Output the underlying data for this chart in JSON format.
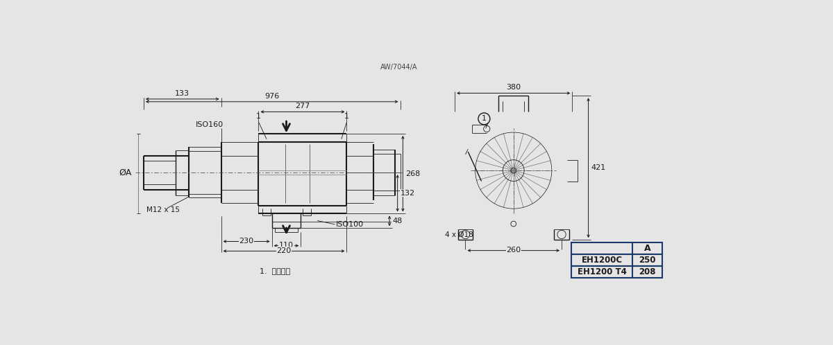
{
  "bg_color": "#e5e5e5",
  "line_color": "#1a1a1a",
  "table_border_color": "#1a3a6b",
  "title_note": "AW/7044/A",
  "footnote": "1.  起重螺栓",
  "table": {
    "header_col": "A",
    "rows": [
      [
        "EH1200C",
        "250"
      ],
      [
        "EH1200 T4",
        "208"
      ]
    ]
  },
  "dims_left": {
    "overall_width": "976",
    "left_seg": "133",
    "iso160": "ISO160",
    "top_width": "277",
    "height_total": "268",
    "height_lower": "132",
    "height_bottom": "48",
    "bottom_left": "230",
    "bottom_mid": "110",
    "bottom_total": "220",
    "iso100": "ISO100",
    "m12": "M12 x 15",
    "dia_a": "ØA"
  },
  "dims_right": {
    "top_width": "380",
    "height": "421",
    "bottom_holes": "4 x Ø18",
    "bottom_width": "260"
  }
}
